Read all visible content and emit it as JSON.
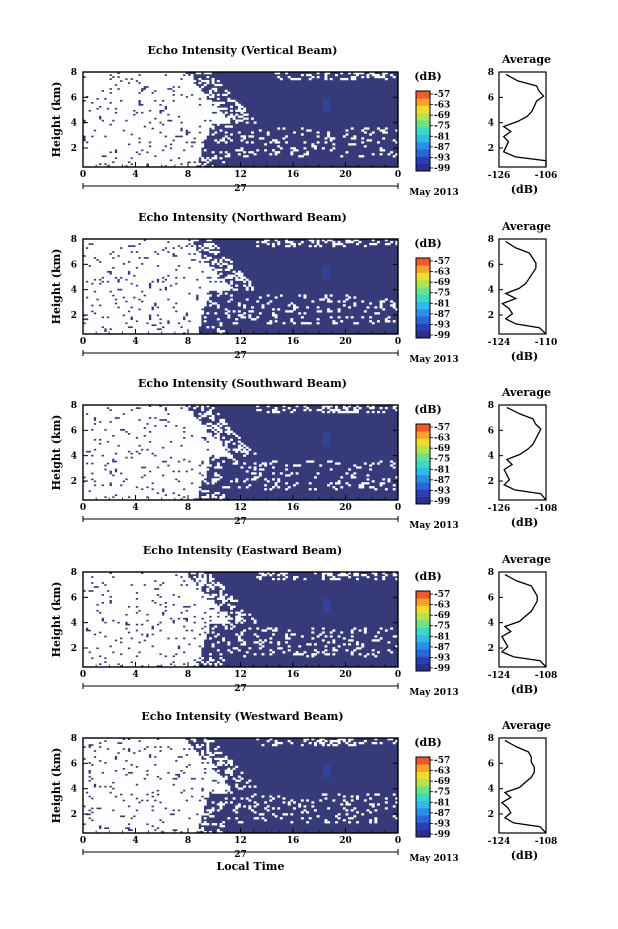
{
  "colors": {
    "background_echo": "#363a78",
    "colorbar": [
      "#2b2f8e",
      "#2c3eb3",
      "#2a66d8",
      "#2b8fe8",
      "#2fbbe6",
      "#39d9c2",
      "#6de08a",
      "#b5e24f",
      "#f0dc2c",
      "#f7a329",
      "#f05a2b"
    ]
  },
  "layout": {
    "date_label": "27",
    "month_label": "May 2013",
    "x_axis_label": "Local Time",
    "x_ticks": [
      "0",
      "4",
      "8",
      "12",
      "16",
      "20",
      "0"
    ],
    "height_label": "Height (km)",
    "height_ticks": [
      "2",
      "4",
      "6",
      "8"
    ],
    "colorbar_unit": "(dB)",
    "colorbar_ticks": [
      "-57",
      "-63",
      "-69",
      "-75",
      "-81",
      "-87",
      "-93",
      "-99"
    ],
    "avg_title": "Average",
    "avg_unit": "(dB)",
    "avg_y_ticks": [
      "2",
      "4",
      "6",
      "8"
    ]
  },
  "chart_data": [
    {
      "type": "heatmap",
      "title": "Echo Intensity (Vertical Beam)",
      "xlabel": "",
      "ylabel": "Height (km)",
      "x_range": [
        0,
        24
      ],
      "y_range": [
        0.5,
        8
      ],
      "colorbar_range": [
        -99,
        -57
      ],
      "avg_profile": {
        "xlim": [
          -126,
          -106
        ],
        "x_ticks": [
          "-126",
          "-106"
        ],
        "height": [
          0.5,
          1.0,
          1.3,
          1.7,
          2.1,
          2.5,
          2.9,
          3.3,
          3.7,
          4.1,
          4.5,
          4.9,
          5.3,
          5.7,
          6.1,
          6.5,
          6.9,
          7.3,
          7.8
        ],
        "values": [
          -105,
          -106,
          -119,
          -124,
          -123,
          -122,
          -124,
          -121,
          -124,
          -118,
          -114,
          -112,
          -111,
          -110,
          -107,
          -109,
          -110,
          -118,
          -123
        ]
      }
    },
    {
      "type": "heatmap",
      "title": "Echo Intensity (Northward Beam)",
      "xlabel": "",
      "ylabel": "Height (km)",
      "x_range": [
        0,
        24
      ],
      "y_range": [
        0.5,
        8
      ],
      "colorbar_range": [
        -99,
        -57
      ],
      "avg_profile": {
        "xlim": [
          -124,
          -110
        ],
        "x_ticks": [
          "-124",
          "-110"
        ],
        "height": [
          0.5,
          1.0,
          1.3,
          1.7,
          2.1,
          2.5,
          2.9,
          3.3,
          3.7,
          4.1,
          4.5,
          4.9,
          5.3,
          5.7,
          6.1,
          6.5,
          6.9,
          7.3,
          7.8
        ],
        "values": [
          -110,
          -112,
          -119,
          -122,
          -120,
          -121,
          -123,
          -119,
          -122,
          -118,
          -116,
          -115,
          -114,
          -113,
          -113,
          -114,
          -115,
          -119,
          -122
        ]
      }
    },
    {
      "type": "heatmap",
      "title": "Echo Intensity (Southward Beam)",
      "xlabel": "",
      "ylabel": "Height (km)",
      "x_range": [
        0,
        24
      ],
      "y_range": [
        0.5,
        8
      ],
      "colorbar_range": [
        -99,
        -57
      ],
      "avg_profile": {
        "xlim": [
          -126,
          -108
        ],
        "x_ticks": [
          "-126",
          "-108"
        ],
        "height": [
          0.5,
          1.0,
          1.3,
          1.7,
          2.1,
          2.5,
          2.9,
          3.3,
          3.7,
          4.1,
          4.5,
          4.9,
          5.3,
          5.7,
          6.1,
          6.5,
          6.9,
          7.3,
          7.8
        ],
        "values": [
          -108,
          -110,
          -120,
          -124,
          -122,
          -123,
          -124,
          -121,
          -123,
          -118,
          -115,
          -113,
          -112,
          -111,
          -110,
          -112,
          -113,
          -118,
          -123
        ]
      }
    },
    {
      "type": "heatmap",
      "title": "Echo Intensity (Eastward Beam)",
      "xlabel": "",
      "ylabel": "Height (km)",
      "x_range": [
        0,
        24
      ],
      "y_range": [
        0.5,
        8
      ],
      "colorbar_range": [
        -99,
        -57
      ],
      "avg_profile": {
        "xlim": [
          -124,
          -108
        ],
        "x_ticks": [
          "-124",
          "-108"
        ],
        "height": [
          0.5,
          1.0,
          1.3,
          1.7,
          2.1,
          2.5,
          2.9,
          3.3,
          3.7,
          4.1,
          4.5,
          4.9,
          5.3,
          5.7,
          6.1,
          6.5,
          6.9,
          7.3,
          7.8
        ],
        "values": [
          -108,
          -110,
          -119,
          -123,
          -121,
          -122,
          -123,
          -120,
          -122,
          -117,
          -115,
          -113,
          -112,
          -111,
          -111,
          -112,
          -113,
          -118,
          -122
        ]
      }
    },
    {
      "type": "heatmap",
      "title": "Echo Intensity (Westward Beam)",
      "xlabel": "Local Time",
      "ylabel": "Height (km)",
      "x_range": [
        0,
        24
      ],
      "y_range": [
        0.5,
        8
      ],
      "colorbar_range": [
        -99,
        -57
      ],
      "avg_profile": {
        "xlim": [
          -124,
          -108
        ],
        "x_ticks": [
          "-124",
          "-108"
        ],
        "height": [
          0.5,
          1.0,
          1.3,
          1.7,
          2.1,
          2.5,
          2.9,
          3.3,
          3.7,
          4.1,
          4.5,
          4.9,
          5.3,
          5.7,
          6.1,
          6.5,
          6.9,
          7.3,
          7.8
        ],
        "values": [
          -108,
          -110,
          -119,
          -122,
          -120,
          -121,
          -123,
          -120,
          -122,
          -117,
          -115,
          -113,
          -112,
          -112,
          -113,
          -113,
          -114,
          -118,
          -122
        ]
      }
    }
  ]
}
